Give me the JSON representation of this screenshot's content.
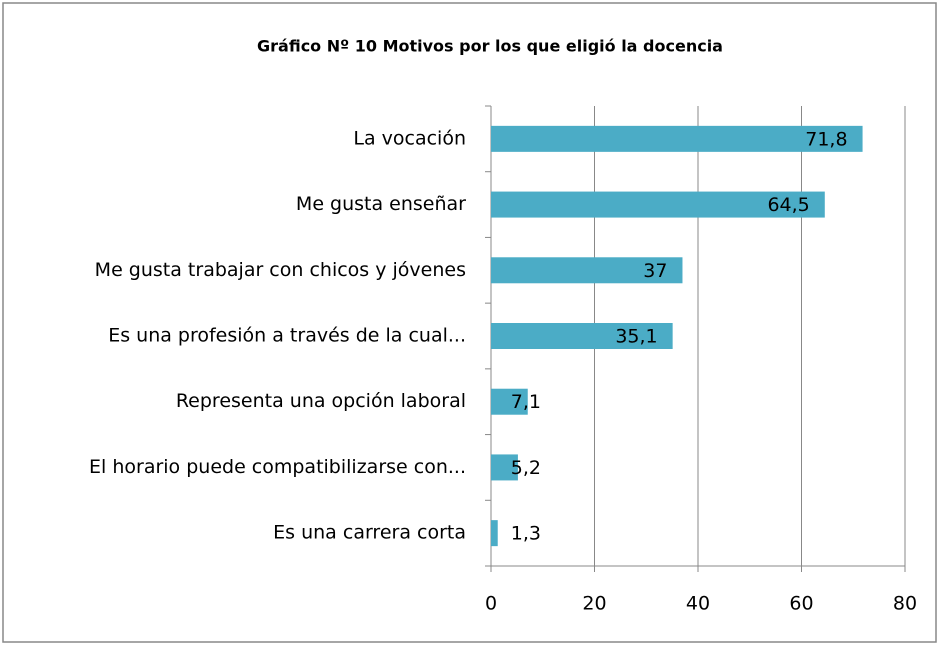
{
  "chart_data": {
    "type": "bar",
    "orientation": "horizontal",
    "title": "Gráfico Nº 10 Motivos por los que eligió la docencia",
    "categories": [
      "La vocación",
      "Me gusta enseñar",
      "Me gusta trabajar con chicos y jóvenes",
      "Es una profesión a través de la cual...",
      "Representa una opción laboral",
      "El horario puede compatibilizarse con...",
      "Es una carrera corta"
    ],
    "values": [
      71.8,
      64.5,
      37,
      35.1,
      7.1,
      5.2,
      1.3
    ],
    "value_labels": [
      "71,8",
      "64,5",
      "37",
      "35,1",
      "7,1",
      "5,2",
      "1,3"
    ],
    "color": "#4bacc6",
    "xlim": [
      0,
      80
    ],
    "xticks": [
      0,
      20,
      40,
      60,
      80
    ],
    "grid": true
  }
}
